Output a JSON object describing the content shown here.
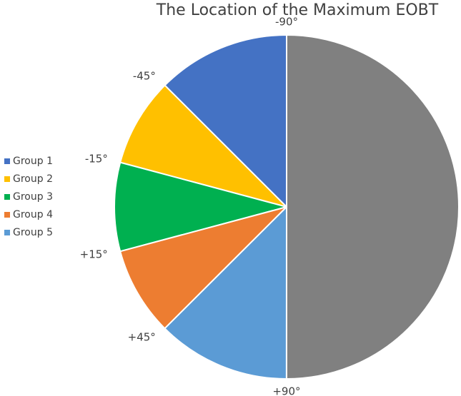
{
  "chart_data": {
    "type": "pie",
    "title": "The Location of the Maximum EOBT",
    "categories": [
      "Group 1",
      "Group 2",
      "Group 3",
      "Group 4",
      "Group 5",
      null
    ],
    "values": [
      12.5,
      8.33,
      8.33,
      8.33,
      12.5,
      50
    ],
    "colors": [
      "#4472c4",
      "#ffc000",
      "#00b050",
      "#ed7d31",
      "#5b9bd5",
      "#808080"
    ],
    "annotations": [
      "-90°",
      "-45°",
      "-15°",
      "+15°",
      "+45°",
      "+90°"
    ],
    "legend": "left"
  }
}
